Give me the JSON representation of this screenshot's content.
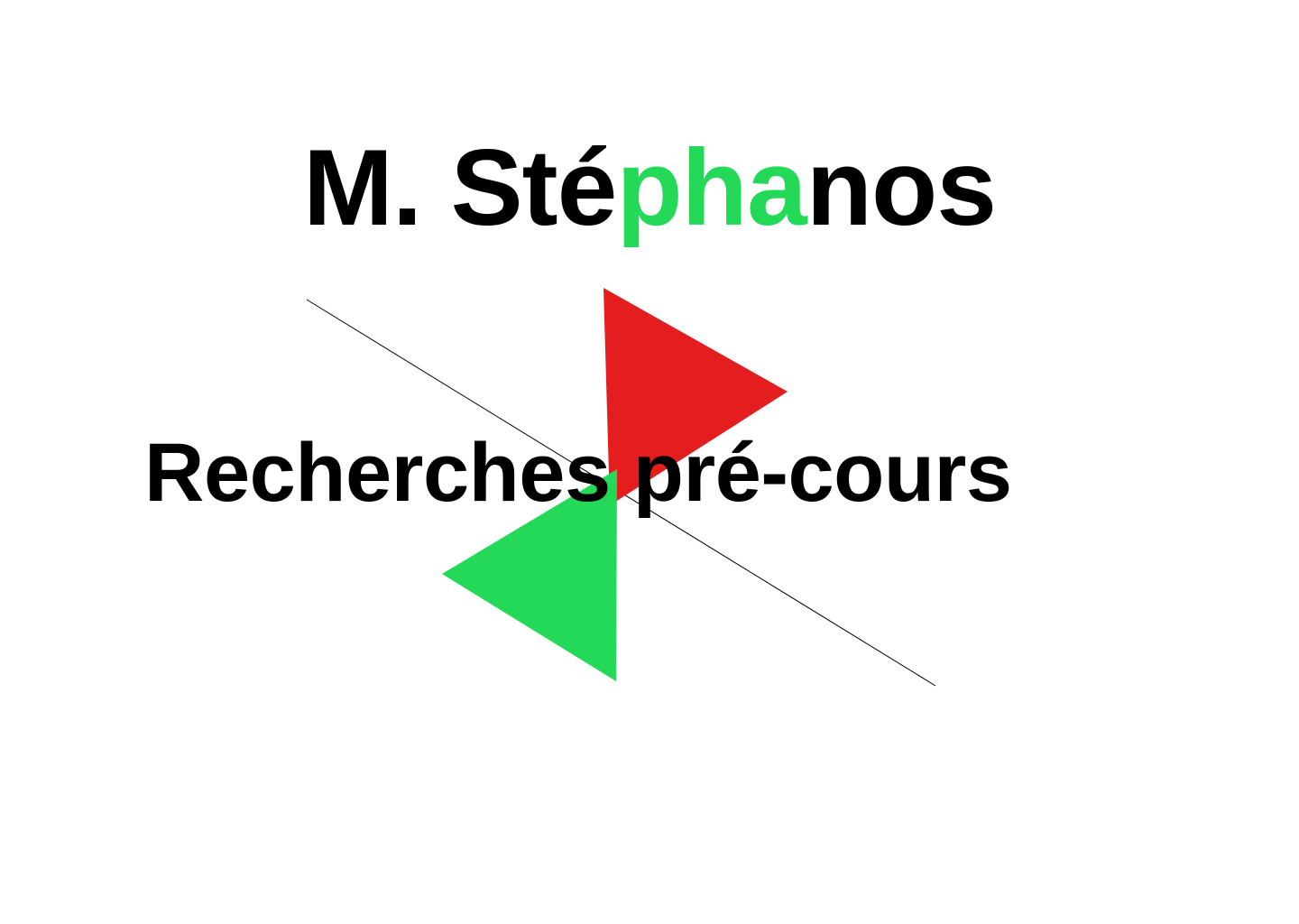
{
  "title": {
    "part1": "M. Sté",
    "accent": "pha",
    "part2": "nos"
  },
  "subtitle": "Recherches pré-cours",
  "colors": {
    "text": "#000000",
    "accent_green": "#24d858",
    "red": "#e41e1e",
    "background": "#ffffff"
  }
}
